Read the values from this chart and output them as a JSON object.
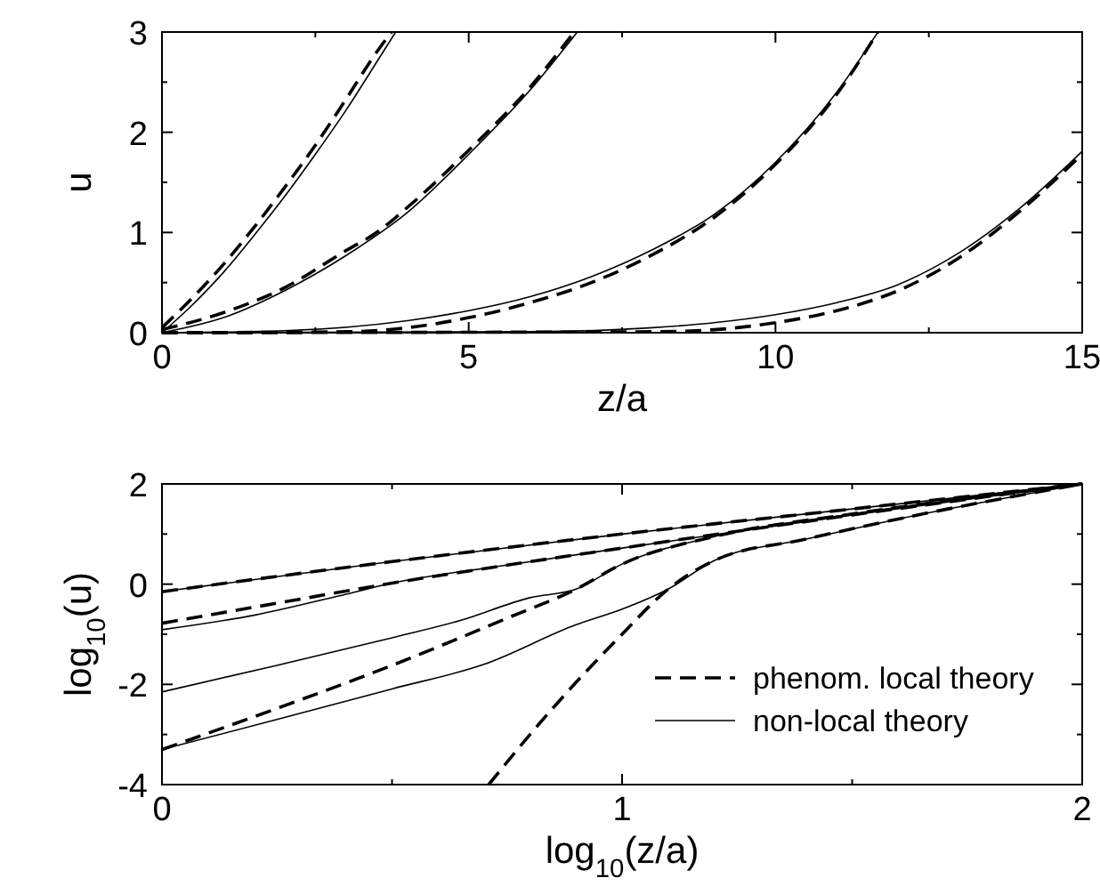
{
  "chart_data": [
    {
      "type": "line",
      "xlabel": "z/a",
      "ylabel": "u",
      "xlim": [
        0,
        15
      ],
      "ylim": [
        0,
        3
      ],
      "xticks": [
        0,
        {
          "value": 2.5,
          "label": null
        },
        5,
        {
          "value": 7.5,
          "label": null
        },
        10,
        {
          "value": 12.5,
          "label": null
        },
        15
      ],
      "yticks": [
        0,
        {
          "value": 0.5,
          "label": null
        },
        1,
        {
          "value": 1.5,
          "label": null
        },
        2,
        {
          "value": 2.5,
          "label": null
        },
        3
      ],
      "grid": false,
      "legend": false,
      "series": [
        {
          "color": "#000000",
          "line_style": "dashed",
          "x": [
            0,
            0.5,
            1,
            1.5,
            2,
            2.5,
            3,
            3.5,
            3.74
          ],
          "values": [
            0.05,
            0.35,
            0.68,
            1.05,
            1.45,
            1.87,
            2.33,
            2.8,
            3.0
          ]
        },
        {
          "color": "#000000",
          "line_style": "solid",
          "x": [
            0,
            0.5,
            1,
            1.5,
            2,
            2.5,
            3,
            3.5,
            3.81
          ],
          "values": [
            0,
            0.28,
            0.6,
            0.97,
            1.36,
            1.78,
            2.22,
            2.7,
            3.0
          ]
        },
        {
          "color": "#000000",
          "line_style": "dashed",
          "x": [
            0,
            1,
            2,
            3,
            3.5,
            4,
            5,
            6,
            6.72
          ],
          "values": [
            0.03,
            0.2,
            0.45,
            0.82,
            1.0,
            1.25,
            1.82,
            2.45,
            3.0
          ]
        },
        {
          "color": "#000000",
          "line_style": "solid",
          "x": [
            0,
            1,
            2,
            3,
            4,
            5,
            6,
            6.77
          ],
          "values": [
            0,
            0.15,
            0.42,
            0.77,
            1.2,
            1.78,
            2.42,
            3.0
          ]
        },
        {
          "color": "#000000",
          "line_style": "dashed",
          "x": [
            0,
            3,
            4,
            5,
            6,
            7,
            8,
            9,
            10,
            11,
            11.67
          ],
          "values": [
            0,
            0.01,
            0.05,
            0.15,
            0.3,
            0.5,
            0.78,
            1.15,
            1.68,
            2.38,
            3.0
          ]
        },
        {
          "color": "#000000",
          "line_style": "solid",
          "x": [
            0,
            2,
            4,
            5,
            6,
            7,
            8,
            9,
            10,
            11,
            11.67
          ],
          "values": [
            0,
            0.02,
            0.12,
            0.22,
            0.36,
            0.56,
            0.83,
            1.18,
            1.7,
            2.4,
            3.0
          ]
        },
        {
          "color": "#000000",
          "line_style": "dashed",
          "x": [
            0,
            8,
            9,
            10,
            11,
            12,
            13,
            14,
            15
          ],
          "values": [
            0,
            0.01,
            0.03,
            0.1,
            0.22,
            0.42,
            0.75,
            1.22,
            1.78
          ]
        },
        {
          "color": "#000000",
          "line_style": "solid",
          "x": [
            0,
            6,
            8,
            9,
            10,
            11,
            12,
            13,
            14,
            15
          ],
          "values": [
            0,
            0.01,
            0.05,
            0.1,
            0.18,
            0.3,
            0.48,
            0.8,
            1.25,
            1.81
          ]
        }
      ]
    },
    {
      "type": "line",
      "xlabel": "log$_{10}$(z/a)",
      "ylabel": "log$_{10}$(u)",
      "xlim": [
        0,
        2
      ],
      "ylim": [
        -4,
        2
      ],
      "xticks": [
        0,
        {
          "value": 0.5,
          "label": null
        },
        1,
        {
          "value": 1.5,
          "label": null
        },
        2
      ],
      "yticks": [
        -4,
        {
          "value": -3,
          "label": null
        },
        -2,
        {
          "value": -1,
          "label": null
        },
        0,
        {
          "value": 1,
          "label": null
        },
        2
      ],
      "grid": false,
      "legend": "bottom right",
      "series": [
        {
          "name": "phenom. local theory",
          "color": "#000000",
          "line_style": "dashed",
          "x": [
            0,
            0.5,
            1,
            1.5,
            2
          ],
          "values": [
            -0.15,
            0.45,
            1.0,
            1.5,
            2
          ]
        },
        {
          "name": "non-local theory",
          "color": "#000000",
          "line_style": "solid",
          "x": [
            0,
            0.5,
            1,
            1.5,
            2
          ],
          "values": [
            -0.15,
            0.45,
            1.0,
            1.5,
            2
          ]
        },
        {
          "color": "#000000",
          "line_style": "dashed",
          "x": [
            0,
            0.25,
            0.5,
            0.75,
            1,
            1.5,
            2
          ],
          "values": [
            -0.78,
            -0.38,
            0.02,
            0.38,
            0.72,
            1.38,
            2
          ]
        },
        {
          "color": "#000000",
          "line_style": "solid",
          "x": [
            0,
            0.2,
            0.4,
            0.5,
            0.75,
            1,
            1.5,
            2
          ],
          "values": [
            -0.91,
            -0.62,
            -0.2,
            0.02,
            0.38,
            0.72,
            1.38,
            2
          ]
        },
        {
          "color": "#000000",
          "line_style": "dashed",
          "x": [
            0,
            0.25,
            0.5,
            0.75,
            0.9,
            1,
            1.2,
            1.5,
            2
          ],
          "values": [
            -3.3,
            -2.48,
            -1.62,
            -0.68,
            -0.1,
            0.4,
            0.95,
            1.4,
            2
          ]
        },
        {
          "color": "#000000",
          "line_style": "solid",
          "x": [
            0,
            0.25,
            0.5,
            0.65,
            0.8,
            0.9,
            1,
            1.2,
            1.5,
            2
          ],
          "values": [
            -2.15,
            -1.62,
            -1.07,
            -0.72,
            -0.27,
            -0.1,
            0.4,
            0.95,
            1.4,
            2
          ]
        },
        {
          "color": "#000000",
          "line_style": "dashed",
          "x": [
            0.71,
            0.8,
            0.9,
            1,
            1.1,
            1.2,
            1.4,
            1.6,
            2
          ],
          "values": [
            -4,
            -3.0,
            -1.96,
            -1.0,
            -0.1,
            0.47,
            0.9,
            1.3,
            2
          ]
        },
        {
          "color": "#000000",
          "line_style": "solid",
          "x": [
            0,
            0.25,
            0.5,
            0.7,
            0.9,
            1,
            1.1,
            1.2,
            1.4,
            1.6,
            2
          ],
          "values": [
            -3.3,
            -2.7,
            -2.09,
            -1.6,
            -0.81,
            -0.5,
            -0.1,
            0.47,
            0.9,
            1.3,
            2
          ]
        }
      ]
    }
  ]
}
